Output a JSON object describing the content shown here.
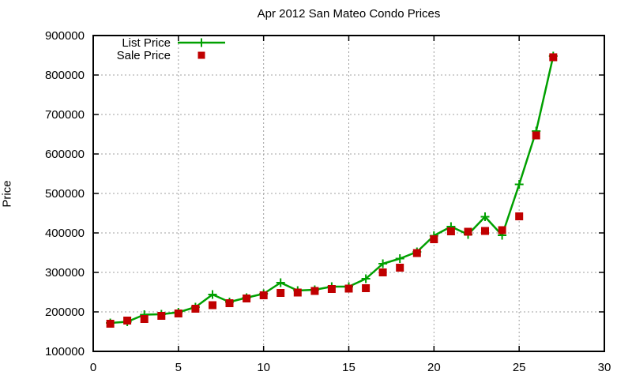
{
  "chart_data": {
    "type": "line",
    "title": "Apr 2012 San Mateo Condo Prices",
    "xlabel": "",
    "ylabel": "Price",
    "xlim": [
      0,
      30
    ],
    "ylim": [
      100000,
      900000
    ],
    "x_ticks": [
      0,
      5,
      10,
      15,
      20,
      25,
      30
    ],
    "y_ticks": [
      100000,
      200000,
      300000,
      400000,
      500000,
      600000,
      700000,
      800000,
      900000
    ],
    "grid": true,
    "legend_position": "top-left",
    "x": [
      1,
      2,
      3,
      4,
      5,
      6,
      7,
      8,
      9,
      10,
      11,
      12,
      13,
      14,
      15,
      16,
      17,
      18,
      19,
      20,
      21,
      22,
      23,
      24,
      25,
      26,
      27
    ],
    "series": [
      {
        "name": "List Price",
        "color": "#00A000",
        "marker": "plus",
        "style": "line-with-markers",
        "values": [
          172000,
          175000,
          193000,
          194000,
          199000,
          212000,
          244000,
          225000,
          236000,
          246000,
          274000,
          254000,
          256000,
          264000,
          264000,
          284000,
          322000,
          335000,
          352000,
          393000,
          416000,
          396000,
          441000,
          394000,
          523000,
          658000,
          848000
        ]
      },
      {
        "name": "Sale Price",
        "color": "#C00000",
        "marker": "square",
        "style": "markers-only",
        "values": [
          170000,
          178000,
          182000,
          190000,
          196000,
          208000,
          217000,
          222000,
          234000,
          242000,
          248000,
          249000,
          253000,
          258000,
          259000,
          260000,
          300000,
          312000,
          349000,
          384000,
          404000,
          403000,
          405000,
          407000,
          442000,
          647000,
          845000
        ]
      }
    ]
  }
}
